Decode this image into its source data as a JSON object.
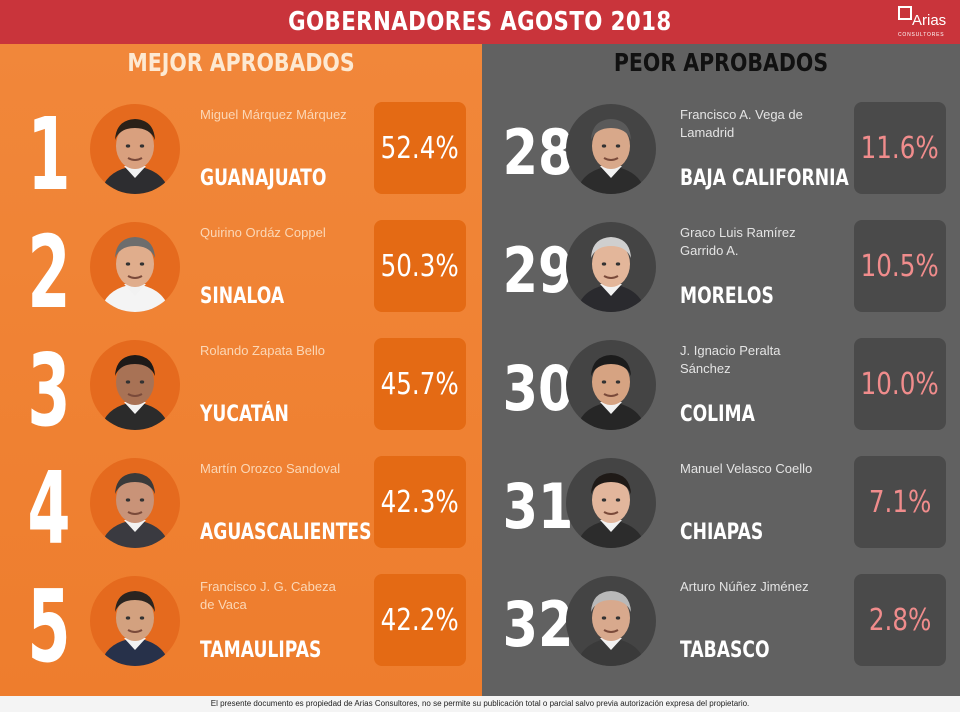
{
  "header": {
    "title": "GOBERNADORES AGOSTO 2018",
    "logo_text": "Arias",
    "logo_sub": "CONSULTORES"
  },
  "best": {
    "title": "MEJOR APROBADOS",
    "items": [
      {
        "rank": "1",
        "name": "Miguel Márquez Márquez",
        "state": "GUANAJUATO",
        "pct": "52.4%"
      },
      {
        "rank": "2",
        "name": "Quirino Ordáz Coppel",
        "state": "SINALOA",
        "pct": "50.3%"
      },
      {
        "rank": "3",
        "name": "Rolando Zapata Bello",
        "state": "YUCATÁN",
        "pct": "45.7%"
      },
      {
        "rank": "4",
        "name": "Martín Orozco Sandoval",
        "state": "AGUASCALIENTES",
        "pct": "42.3%"
      },
      {
        "rank": "5",
        "name": "Francisco J. G. Cabeza de Vaca",
        "state": "TAMAULIPAS",
        "pct": "42.2%"
      }
    ]
  },
  "worst": {
    "title": "PEOR APROBADOS",
    "items": [
      {
        "rank": "28",
        "name": "Francisco A. Vega de Lamadrid",
        "state": "BAJA CALIFORNIA",
        "pct": "11.6%"
      },
      {
        "rank": "29",
        "name": "Graco Luis Ramírez Garrido A.",
        "state": "MORELOS",
        "pct": "10.5%"
      },
      {
        "rank": "30",
        "name": "J. Ignacio Peralta Sánchez",
        "state": "COLIMA",
        "pct": "10.0%"
      },
      {
        "rank": "31",
        "name": "Manuel Velasco Coello",
        "state": "CHIAPAS",
        "pct": "7.1%"
      },
      {
        "rank": "32",
        "name": "Arturo Núñez Jiménez",
        "state": "TABASCO",
        "pct": "2.8%"
      }
    ]
  },
  "footer": {
    "text": "El presente documento es propiedad de Arias Consultores, no se permite su publicación total o parcial salvo previa autorización expresa del propietario."
  }
}
